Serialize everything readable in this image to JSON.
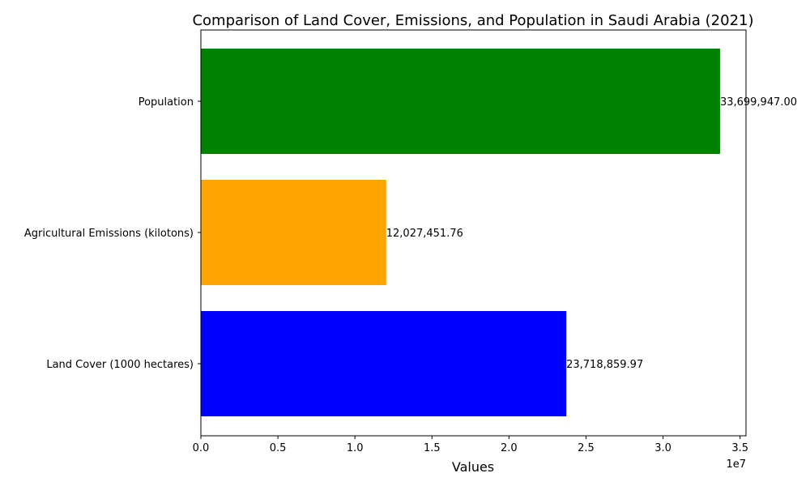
{
  "chart_data": {
    "type": "bar",
    "orientation": "horizontal",
    "title": "Comparison of Land Cover, Emissions, and Population in Saudi Arabia (2021)",
    "xlabel": "Values",
    "ylabel": "",
    "x_scale_label": "1e7",
    "xlim": [
      0,
      35384944.35
    ],
    "x_ticks": [
      0,
      5000000,
      10000000,
      15000000,
      20000000,
      25000000,
      30000000,
      35000000
    ],
    "x_tick_labels": [
      "0.0",
      "0.5",
      "1.0",
      "1.5",
      "2.0",
      "2.5",
      "3.0",
      "3.5"
    ],
    "categories": [
      "Land Cover (1000 hectares)",
      "Agricultural Emissions (kilotons)",
      "Population"
    ],
    "values": [
      23718859.97,
      12027451.76,
      33699947.0
    ],
    "value_labels": [
      "23,718,859.97",
      "12,027,451.76",
      "33,699,947.00"
    ],
    "colors": [
      "#0000ff",
      "#ffa500",
      "#008000"
    ],
    "grid": false,
    "legend": "none"
  }
}
